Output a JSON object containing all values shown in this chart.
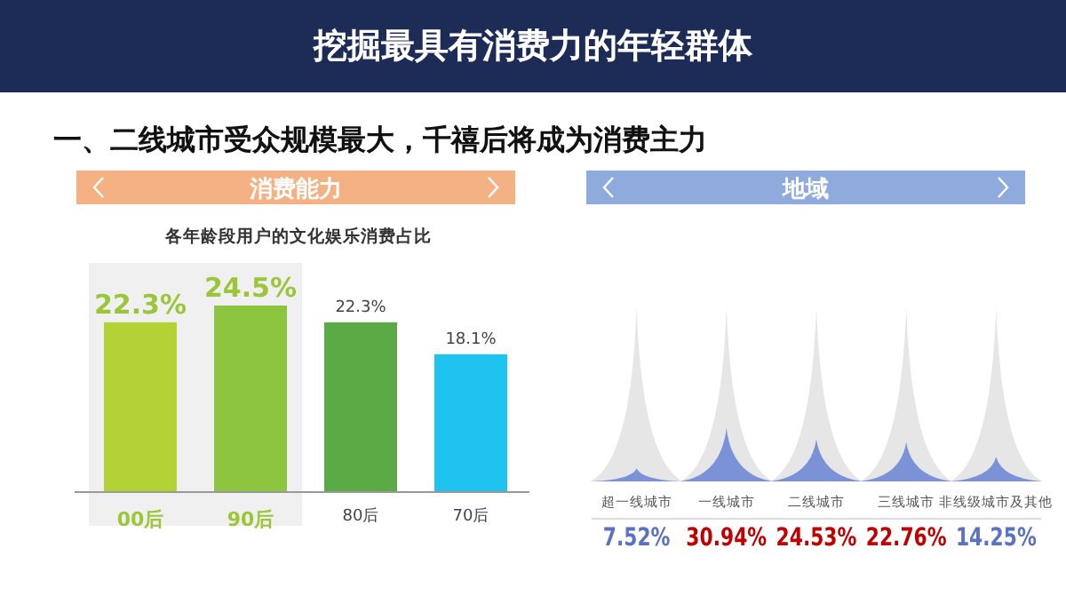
{
  "chart_data": [
    {
      "type": "bar",
      "subtitle": "消费能力",
      "title": "各年龄段用户的文化娱乐消费占比",
      "annotations": [
        "挖掘最具有消费力的年轻群体",
        "一、二线城市受众规模最大，千禧后将成为消费主力"
      ],
      "categories": [
        "00后",
        "90后",
        "80后",
        "70后"
      ],
      "values": [
        22.3,
        24.5,
        22.3,
        18.1
      ],
      "value_labels": [
        "22.3%",
        "24.5%",
        "22.3%",
        "18.1%"
      ],
      "colors": [
        "#b3d235",
        "#8cc63f",
        "#5aaa46",
        "#1ec3ef"
      ],
      "bands": [
        {
          "axis": "x",
          "from": "00后",
          "to": "90后",
          "color": "#f0f0f0"
        }
      ]
    },
    {
      "type": "other",
      "title": "地域",
      "categories": [
        "超一线城市",
        "一线城市",
        "二线城市",
        "三线城市",
        "非线级城市及其他"
      ],
      "values": [
        7.52,
        30.94,
        24.53,
        22.76,
        14.25
      ],
      "value_labels": [
        "7.52%",
        "30.94%",
        "24.53%",
        "22.76%",
        "14.25%"
      ],
      "color": "#7b93d6"
    }
  ]
}
